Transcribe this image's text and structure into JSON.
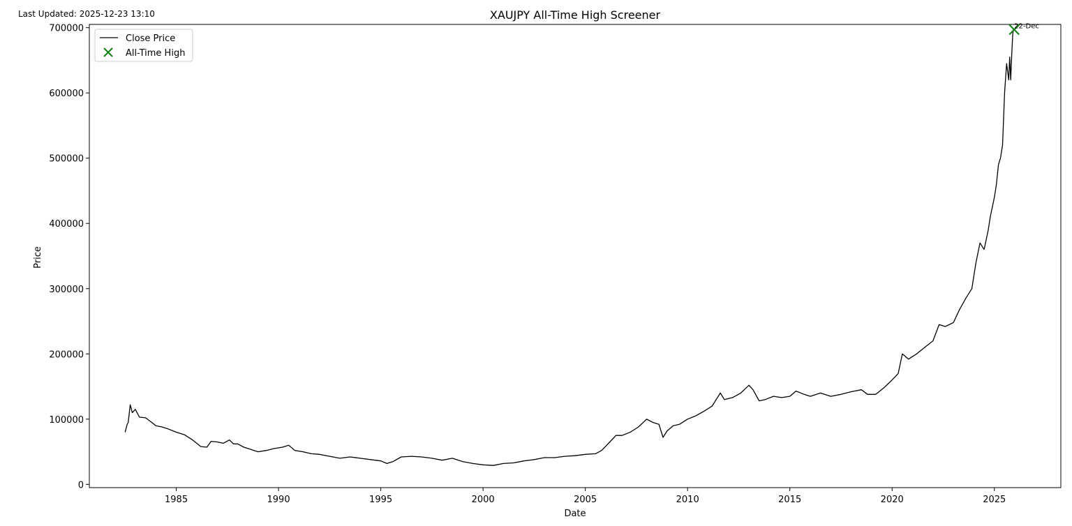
{
  "updated_text": "Last Updated: 2025-12-23 13:10",
  "chart_data": {
    "type": "line",
    "title": "XAUJPY All-Time High Screener",
    "xlabel": "Date",
    "ylabel": "Price",
    "xlim": [
      1980.75,
      2028.25
    ],
    "ylim": [
      -5000,
      705000
    ],
    "xticks": [
      "1985",
      "1990",
      "1995",
      "2000",
      "2005",
      "2010",
      "2015",
      "2020",
      "2025"
    ],
    "yticks": [
      "0",
      "100000",
      "200000",
      "300000",
      "400000",
      "500000",
      "600000",
      "700000"
    ],
    "grid": false,
    "legend_position": "top-left",
    "series": [
      {
        "name": "Close Price",
        "color": "#000000",
        "x": [
          1982.5,
          1982.6,
          1982.65,
          1982.75,
          1982.85,
          1983.0,
          1983.2,
          1983.5,
          1983.8,
          1984.0,
          1984.3,
          1984.6,
          1985.0,
          1985.4,
          1985.8,
          1986.2,
          1986.5,
          1986.7,
          1987.0,
          1987.3,
          1987.6,
          1987.8,
          1988.0,
          1988.3,
          1988.6,
          1989.0,
          1989.4,
          1989.8,
          1990.2,
          1990.5,
          1990.8,
          1991.2,
          1991.6,
          1992.0,
          1992.5,
          1993.0,
          1993.5,
          1994.0,
          1994.5,
          1995.0,
          1995.3,
          1995.6,
          1996.0,
          1996.5,
          1997.0,
          1997.5,
          1998.0,
          1998.5,
          1999.0,
          1999.5,
          2000.0,
          2000.5,
          2001.0,
          2001.5,
          2002.0,
          2002.5,
          2003.0,
          2003.5,
          2004.0,
          2004.5,
          2005.0,
          2005.5,
          2005.8,
          2006.2,
          2006.5,
          2006.8,
          2007.2,
          2007.6,
          2008.0,
          2008.3,
          2008.6,
          2008.8,
          2009.0,
          2009.3,
          2009.6,
          2010.0,
          2010.4,
          2010.8,
          2011.2,
          2011.6,
          2011.8,
          2012.2,
          2012.6,
          2013.0,
          2013.2,
          2013.5,
          2013.8,
          2014.2,
          2014.6,
          2015.0,
          2015.3,
          2015.7,
          2016.0,
          2016.5,
          2017.0,
          2017.5,
          2018.0,
          2018.5,
          2018.8,
          2019.2,
          2019.6,
          2020.0,
          2020.3,
          2020.5,
          2020.8,
          2021.2,
          2021.6,
          2022.0,
          2022.3,
          2022.6,
          2023.0,
          2023.3,
          2023.6,
          2023.9,
          2024.1,
          2024.3,
          2024.5,
          2024.7,
          2024.8,
          2025.0,
          2025.1,
          2025.2,
          2025.3,
          2025.4,
          2025.5,
          2025.6,
          2025.7,
          2025.75,
          2025.8,
          2025.85,
          2025.9,
          2025.93,
          2025.97
        ],
        "y": [
          80000,
          92000,
          95000,
          122000,
          110000,
          115000,
          103000,
          102000,
          95000,
          90000,
          88000,
          85000,
          80000,
          76000,
          68000,
          58000,
          57000,
          66000,
          65000,
          63000,
          68000,
          62000,
          62000,
          57000,
          54000,
          50000,
          52000,
          55000,
          57000,
          60000,
          52000,
          50000,
          47000,
          46000,
          43000,
          40000,
          42000,
          40000,
          38000,
          36000,
          32000,
          35000,
          42000,
          43000,
          42000,
          40000,
          37000,
          40000,
          35000,
          32000,
          30000,
          29000,
          32000,
          33000,
          36000,
          38000,
          41000,
          41000,
          43000,
          44000,
          46000,
          47000,
          52000,
          65000,
          75000,
          75000,
          80000,
          88000,
          100000,
          95000,
          92000,
          72000,
          82000,
          90000,
          92000,
          100000,
          105000,
          112000,
          120000,
          140000,
          130000,
          133000,
          140000,
          152000,
          145000,
          128000,
          130000,
          135000,
          133000,
          135000,
          143000,
          138000,
          135000,
          140000,
          135000,
          138000,
          142000,
          145000,
          138000,
          138000,
          148000,
          160000,
          170000,
          200000,
          192000,
          200000,
          210000,
          220000,
          245000,
          242000,
          248000,
          268000,
          285000,
          300000,
          340000,
          370000,
          360000,
          390000,
          410000,
          440000,
          460000,
          490000,
          500000,
          520000,
          600000,
          645000,
          620000,
          655000,
          620000,
          660000,
          690000,
          697000,
          696000
        ]
      }
    ],
    "marker": {
      "name": "All-Time High",
      "color": "#117f11",
      "x": 2025.97,
      "y": 697000,
      "label": "22-Dec"
    }
  }
}
